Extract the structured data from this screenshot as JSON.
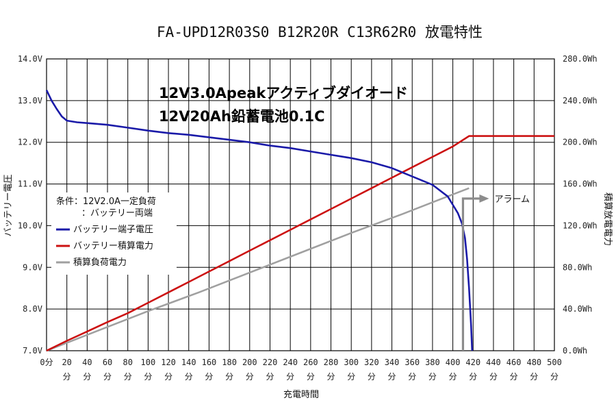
{
  "chart_data": {
    "type": "line",
    "title": "FA-UPD12R03S0 B12R20R C13R62R0 放電特性",
    "xlabel": "充電時間",
    "ylabel_left": "バッテリー電圧",
    "ylabel_right": "積算放電電力",
    "xlim": [
      0,
      500
    ],
    "ylim_left": [
      7.0,
      14.0
    ],
    "ylim_right": [
      0,
      280
    ],
    "x_tick_values": [
      0,
      20,
      40,
      60,
      80,
      100,
      120,
      140,
      160,
      180,
      200,
      220,
      240,
      260,
      280,
      300,
      320,
      340,
      360,
      380,
      400,
      420,
      440,
      460,
      480,
      500
    ],
    "x_tick_label_top": [
      "0分",
      "20",
      "40",
      "60",
      "80",
      "100",
      "120",
      "140",
      "160",
      "180",
      "200",
      "220",
      "240",
      "260",
      "280",
      "300",
      "320",
      "340",
      "360",
      "380",
      "400",
      "420",
      "440",
      "460",
      "480",
      "500"
    ],
    "x_tick_label_bottom": [
      "",
      "分",
      "分",
      "分",
      "分",
      "分",
      "分",
      "分",
      "分",
      "分",
      "分",
      "分",
      "分",
      "分",
      "分",
      "分",
      "分",
      "分",
      "分",
      "分",
      "分",
      "分",
      "分",
      "分",
      "分",
      "分"
    ],
    "y_left_ticks": [
      7.0,
      8.0,
      9.0,
      10.0,
      11.0,
      12.0,
      13.0,
      14.0
    ],
    "y_left_tick_labels": [
      "7.0V",
      "8.0V",
      "9.0V",
      "10.0V",
      "11.0V",
      "12.0V",
      "13.0V",
      "14.0V"
    ],
    "y_right_ticks": [
      0,
      40,
      80,
      120,
      160,
      200,
      240,
      280
    ],
    "y_right_tick_labels": [
      "0.0Wh",
      "40.0Wh",
      "80.0Wh",
      "120.0Wh",
      "160.0Wh",
      "200.0Wh",
      "240.0Wh",
      "280.0Wh"
    ],
    "grid": true,
    "legend_position": "left-middle",
    "series": [
      {
        "name": "バッテリー端子電圧",
        "color": "#1a1aa8",
        "axis": "left",
        "points": [
          [
            0,
            13.25
          ],
          [
            5,
            13.0
          ],
          [
            10,
            12.8
          ],
          [
            15,
            12.62
          ],
          [
            20,
            12.52
          ],
          [
            30,
            12.48
          ],
          [
            40,
            12.46
          ],
          [
            60,
            12.42
          ],
          [
            80,
            12.35
          ],
          [
            100,
            12.28
          ],
          [
            120,
            12.22
          ],
          [
            140,
            12.18
          ],
          [
            160,
            12.12
          ],
          [
            180,
            12.06
          ],
          [
            200,
            12.0
          ],
          [
            220,
            11.92
          ],
          [
            240,
            11.86
          ],
          [
            260,
            11.78
          ],
          [
            280,
            11.7
          ],
          [
            300,
            11.62
          ],
          [
            320,
            11.52
          ],
          [
            340,
            11.38
          ],
          [
            360,
            11.18
          ],
          [
            380,
            10.98
          ],
          [
            395,
            10.7
          ],
          [
            400,
            10.5
          ],
          [
            405,
            10.3
          ],
          [
            409,
            10.05
          ],
          [
            412,
            9.7
          ],
          [
            414,
            9.2
          ],
          [
            416,
            8.5
          ],
          [
            418,
            7.6
          ],
          [
            419,
            7.0
          ]
        ]
      },
      {
        "name": "バッテリー積算電力",
        "color": "#cc1111",
        "axis": "right",
        "points": [
          [
            0,
            0
          ],
          [
            20,
            9.5
          ],
          [
            40,
            18.5
          ],
          [
            60,
            27.5
          ],
          [
            80,
            36
          ],
          [
            100,
            46
          ],
          [
            120,
            56
          ],
          [
            140,
            66
          ],
          [
            160,
            76
          ],
          [
            180,
            86
          ],
          [
            200,
            96
          ],
          [
            220,
            106
          ],
          [
            240,
            116
          ],
          [
            260,
            126
          ],
          [
            280,
            136
          ],
          [
            300,
            146
          ],
          [
            320,
            156
          ],
          [
            340,
            166
          ],
          [
            360,
            176
          ],
          [
            380,
            186
          ],
          [
            400,
            196
          ],
          [
            416,
            206
          ],
          [
            440,
            206
          ],
          [
            460,
            206
          ],
          [
            480,
            206
          ],
          [
            500,
            206
          ]
        ]
      },
      {
        "name": "積算負荷電力",
        "color": "#a0a0a0",
        "axis": "right",
        "points": [
          [
            0,
            0
          ],
          [
            50,
            19
          ],
          [
            100,
            38
          ],
          [
            150,
            56
          ],
          [
            200,
            75
          ],
          [
            250,
            94
          ],
          [
            300,
            113
          ],
          [
            350,
            131
          ],
          [
            400,
            150
          ],
          [
            416,
            156
          ]
        ]
      }
    ],
    "alarm": {
      "label": "アラーム",
      "color": "#8c8c8c",
      "x": 410,
      "level_y_right": 146
    },
    "annotations": {
      "product_line1": "12V3.0Apeakアクティブダイオード",
      "product_line2": "12V20Ah鉛蓄電池0.1C",
      "condition_line1": "条件：12V2.0A一定負荷",
      "condition_line2": "：バッテリー両端"
    }
  }
}
